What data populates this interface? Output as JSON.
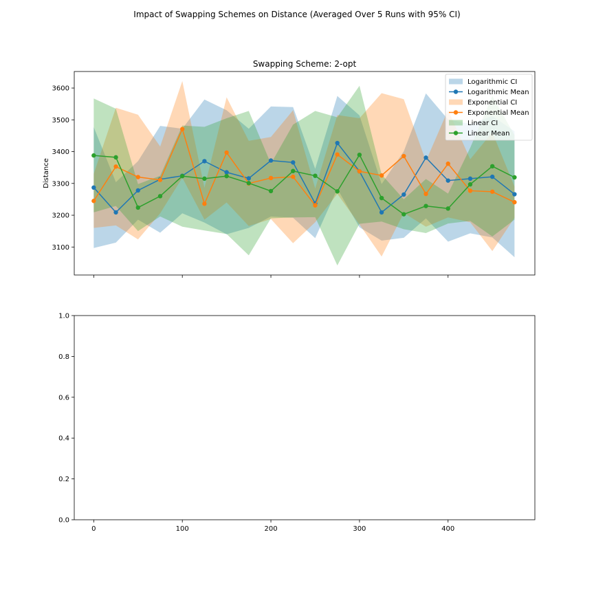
{
  "figure": {
    "suptitle": "Impact of Swapping Schemes on Distance (Averaged Over 5 Runs with 95% CI)"
  },
  "chart_data": [
    {
      "type": "line",
      "title": "Swapping Scheme: 2-opt",
      "xlabel": "",
      "ylabel": "Distance",
      "xlim": [
        -22,
        498
      ],
      "ylim": [
        3012,
        3652
      ],
      "xticks": [
        0,
        100,
        200,
        300,
        400
      ],
      "xtick_labels_visible": false,
      "yticks": [
        3100,
        3200,
        3300,
        3400,
        3500,
        3600
      ],
      "grid": false,
      "legend": "top-right",
      "x": [
        0,
        25,
        50,
        75,
        100,
        125,
        150,
        175,
        200,
        225,
        250,
        275,
        300,
        325,
        350,
        375,
        400,
        425,
        450,
        475
      ],
      "series": [
        {
          "name": "Logarithmic",
          "mean_label": "Logarithmic Mean",
          "ci_label": "Logarithmic CI",
          "color": "#1f77b4",
          "mean": [
            3287,
            3209,
            3278,
            3313,
            3324,
            3370,
            3335,
            3316,
            3372,
            3366,
            3237,
            3427,
            3338,
            3209,
            3265,
            3381,
            3309,
            3315,
            3321,
            3266
          ],
          "ci_low": [
            3097,
            3114,
            3186,
            3145,
            3206,
            3177,
            3140,
            3160,
            3196,
            3192,
            3128,
            3283,
            3162,
            3120,
            3129,
            3190,
            3117,
            3143,
            3130,
            3068
          ],
          "ci_high": [
            3477,
            3304,
            3370,
            3481,
            3472,
            3564,
            3530,
            3472,
            3542,
            3540,
            3346,
            3575,
            3514,
            3298,
            3401,
            3583,
            3501,
            3487,
            3512,
            3464
          ]
        },
        {
          "name": "Exponential",
          "mean_label": "Exponential Mean",
          "ci_label": "Exponential CI",
          "color": "#ff7f0e",
          "mean": [
            3245,
            3353,
            3320,
            3311,
            3471,
            3236,
            3397,
            3300,
            3317,
            3321,
            3231,
            3391,
            3338,
            3325,
            3386,
            3267,
            3362,
            3277,
            3274,
            3241
          ],
          "ci_low": [
            3160,
            3168,
            3124,
            3206,
            3318,
            3186,
            3240,
            3166,
            3188,
            3112,
            3178,
            3267,
            3171,
            3070,
            3207,
            3164,
            3193,
            3178,
            3087,
            3192
          ],
          "ci_high": [
            3330,
            3538,
            3516,
            3416,
            3622,
            3286,
            3571,
            3434,
            3446,
            3530,
            3284,
            3515,
            3505,
            3584,
            3565,
            3370,
            3531,
            3376,
            3461,
            3290
          ]
        },
        {
          "name": "Linear",
          "mean_label": "Linear Mean",
          "ci_label": "Linear CI",
          "color": "#2ca02c",
          "mean": [
            3388,
            3382,
            3224,
            3260,
            3323,
            3315,
            3323,
            3301,
            3276,
            3339,
            3324,
            3275,
            3390,
            3254,
            3203,
            3229,
            3221,
            3297,
            3354,
            3319
          ],
          "ci_low": [
            3209,
            3229,
            3150,
            3196,
            3164,
            3152,
            3141,
            3074,
            3190,
            3193,
            3194,
            3042,
            3173,
            3180,
            3156,
            3144,
            3174,
            3182,
            3133,
            3186
          ],
          "ci_high": [
            3567,
            3535,
            3298,
            3324,
            3482,
            3478,
            3505,
            3528,
            3362,
            3485,
            3528,
            3508,
            3607,
            3328,
            3250,
            3314,
            3268,
            3412,
            3575,
            3452
          ]
        }
      ]
    },
    {
      "type": "line",
      "title": "",
      "xlabel": "",
      "ylabel": "",
      "xlim": [
        -22,
        498
      ],
      "ylim": [
        0,
        1
      ],
      "xticks": [
        0,
        100,
        200,
        300,
        400
      ],
      "xtick_labels": [
        "0",
        "100",
        "200",
        "300",
        "400"
      ],
      "yticks": [
        0.0,
        0.2,
        0.4,
        0.6,
        0.8,
        1.0
      ],
      "ytick_labels": [
        "0.0",
        "0.2",
        "0.4",
        "0.6",
        "0.8",
        "1.0"
      ],
      "grid": false,
      "series": []
    }
  ]
}
